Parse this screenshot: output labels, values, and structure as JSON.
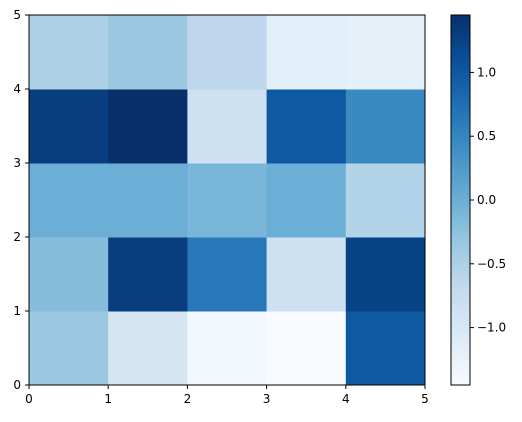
{
  "chart_data": {
    "type": "heatmap",
    "colormap": "Blues",
    "x_edges": [
      0,
      1,
      2,
      3,
      4,
      5
    ],
    "y_edges": [
      0,
      1,
      2,
      3,
      4,
      5
    ],
    "xlim": [
      0,
      5
    ],
    "ylim": [
      0,
      5
    ],
    "x_tick_labels": [
      "0",
      "1",
      "2",
      "3",
      "4",
      "5"
    ],
    "y_tick_labels": [
      "0",
      "1",
      "2",
      "3",
      "4",
      "5"
    ],
    "grid": false,
    "values": [
      [
        -0.35,
        -0.95,
        -1.35,
        -1.45,
        1.0
      ],
      [
        -0.2,
        1.3,
        0.65,
        -0.85,
        1.25
      ],
      [
        0.0,
        0.0,
        -0.1,
        0.0,
        -0.55
      ],
      [
        1.3,
        1.45,
        -0.85,
        1.0,
        0.45
      ],
      [
        -0.5,
        -0.35,
        -0.65,
        -1.15,
        -1.2
      ]
    ],
    "colorbar": {
      "range": [
        -1.45,
        1.45
      ],
      "ticks": [
        -1.0,
        -0.5,
        0.0,
        0.5,
        1.0
      ],
      "tick_labels": [
        "−1.0",
        "−0.5",
        "0.0",
        "0.5",
        "1.0"
      ]
    }
  }
}
